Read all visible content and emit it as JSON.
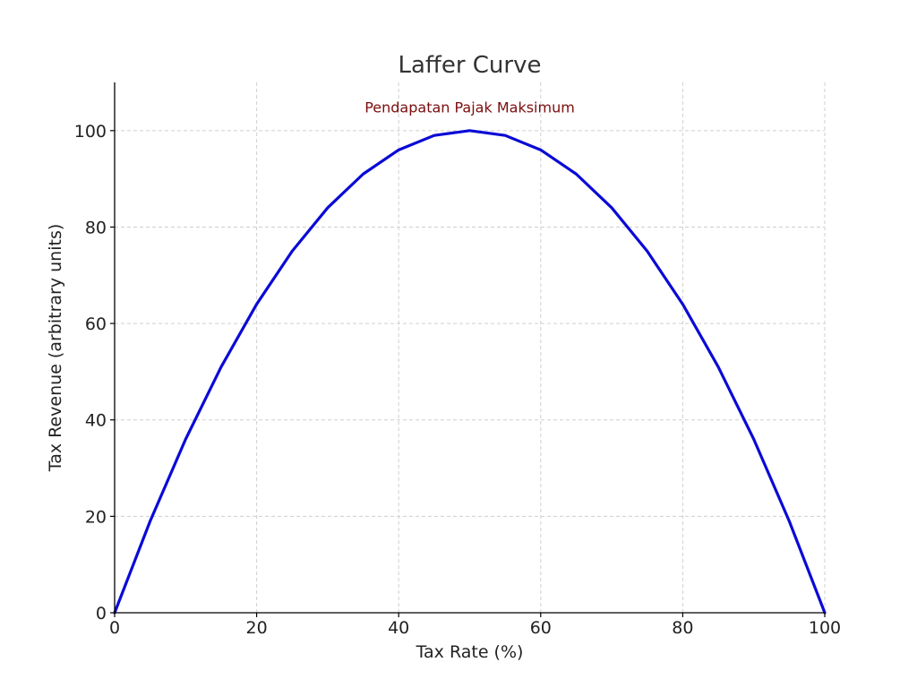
{
  "chart_data": {
    "type": "line",
    "title": "Laffer Curve",
    "xlabel": "Tax Rate (%)",
    "ylabel": "Tax Revenue (arbitrary units)",
    "xlim": [
      0,
      100
    ],
    "ylim": [
      0,
      110
    ],
    "xticks": [
      0,
      20,
      40,
      60,
      80,
      100
    ],
    "yticks": [
      0,
      20,
      40,
      60,
      80,
      100
    ],
    "xtick_labels": [
      "0",
      "20",
      "40",
      "60",
      "80",
      "100"
    ],
    "ytick_labels": [
      "0",
      "20",
      "40",
      "60",
      "80",
      "100"
    ],
    "grid": true,
    "series": [
      {
        "color": "#0a0ad6",
        "x": [
          0,
          5,
          10,
          15,
          20,
          25,
          30,
          35,
          40,
          45,
          50,
          55,
          60,
          65,
          70,
          75,
          80,
          85,
          90,
          95,
          100
        ],
        "y": [
          0,
          19,
          36,
          51,
          64,
          75,
          84,
          91,
          96,
          99,
          100,
          99,
          96,
          91,
          84,
          75,
          64,
          51,
          36,
          19,
          0
        ]
      }
    ],
    "annotations": [
      {
        "text": "Pendapatan Pajak Maksimum",
        "x": 50,
        "y": 104,
        "color": "#7b0d0d"
      }
    ]
  }
}
